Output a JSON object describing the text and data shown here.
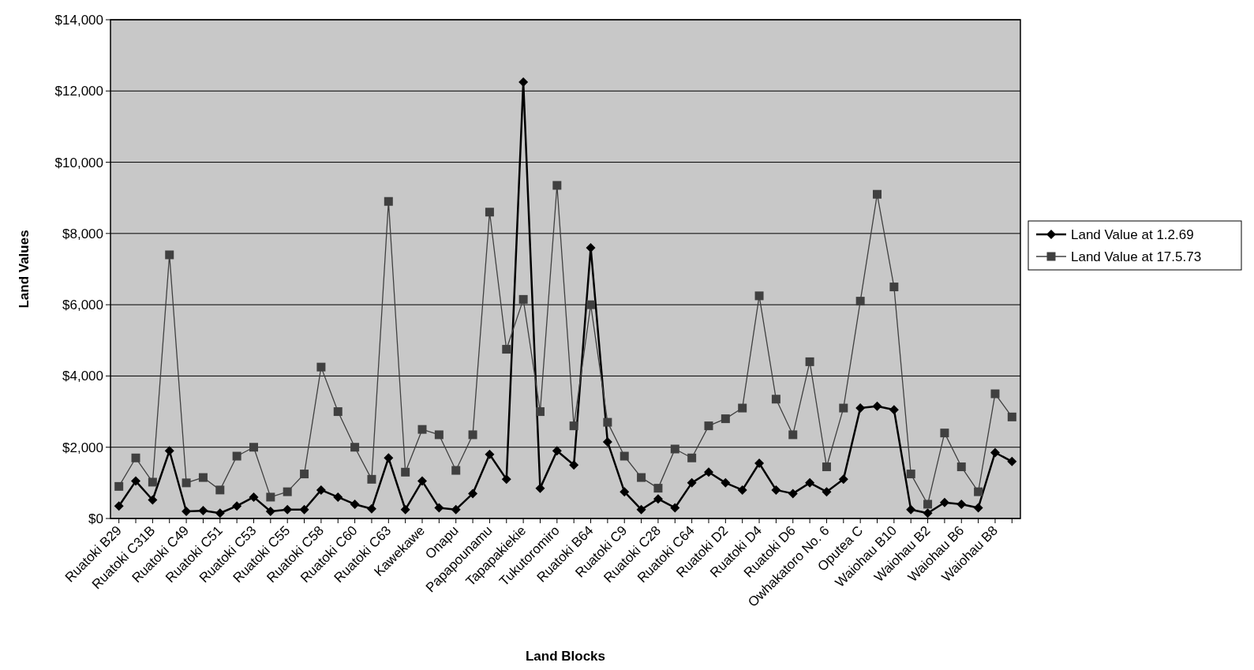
{
  "chart_data": {
    "type": "line",
    "xlabel": "Land Blocks",
    "ylabel": "Land Values",
    "categories": [
      "Ruatoki B29",
      null,
      "Ruatoki C31B",
      null,
      "Ruatoki C49",
      null,
      "Ruatoki C51",
      null,
      "Ruatoki C53",
      null,
      "Ruatoki C55",
      null,
      "Ruatoki C58",
      null,
      "Ruatoki C60",
      null,
      "Ruatoki C63",
      null,
      "Kawekawe",
      null,
      "Onapu",
      null,
      "Papapounamu",
      null,
      "Tapapakiekie",
      null,
      "Tukutoromiro",
      null,
      "Ruatoki B64",
      null,
      "Ruatoki C9",
      null,
      "Ruatoki C28",
      null,
      "Ruatoki C64",
      null,
      "Ruatoki D2",
      null,
      "Ruatoki D4",
      null,
      "Ruatoki D6",
      null,
      "Owhakatoro No. 6",
      null,
      "Oputea C",
      null,
      "Waiohau B10",
      null,
      "Waiohau B2",
      null,
      "Waiohau B6",
      null,
      "Waiohau B8",
      null
    ],
    "series": [
      {
        "name": "Land Value at 1.2.69",
        "color": "#000000",
        "marker": "diamond",
        "values": [
          350,
          1050,
          520,
          1900,
          200,
          220,
          150,
          350,
          600,
          200,
          250,
          250,
          800,
          600,
          400,
          270,
          1700,
          250,
          1050,
          300,
          250,
          700,
          1800,
          1100,
          12250,
          850,
          1900,
          1500,
          7600,
          2150,
          750,
          250,
          550,
          300,
          1000,
          1300,
          1000,
          800,
          1550,
          800,
          700,
          1000,
          750,
          1100,
          3100,
          3150,
          3050,
          250,
          150,
          450,
          400,
          300,
          1850,
          1600
        ]
      },
      {
        "name": "Land Value at 17.5.73",
        "color": "#404040",
        "marker": "square",
        "values": [
          900,
          1700,
          1020,
          7400,
          1000,
          1150,
          800,
          1750,
          2000,
          600,
          750,
          1250,
          4250,
          3000,
          2000,
          1100,
          8900,
          1300,
          2500,
          2350,
          1350,
          2350,
          8600,
          4750,
          6150,
          3000,
          9350,
          2600,
          6000,
          2700,
          1750,
          1150,
          850,
          1950,
          1700,
          2600,
          2800,
          3100,
          6250,
          3350,
          2350,
          4400,
          1450,
          3100,
          6100,
          9100,
          6500,
          1250,
          400,
          2400,
          1450,
          750,
          3500,
          2850
        ]
      }
    ],
    "ylim": [
      0,
      14000
    ],
    "yticks": [
      {
        "value": 0,
        "label": "$0"
      },
      {
        "value": 2000,
        "label": "$2,000"
      },
      {
        "value": 4000,
        "label": "$4,000"
      },
      {
        "value": 6000,
        "label": "$6,000"
      },
      {
        "value": 8000,
        "label": "$8,000"
      },
      {
        "value": 10000,
        "label": "$10,000"
      },
      {
        "value": 12000,
        "label": "$12,000"
      },
      {
        "value": 14000,
        "label": "$14,000"
      }
    ],
    "grid": "y",
    "legend": "right"
  }
}
